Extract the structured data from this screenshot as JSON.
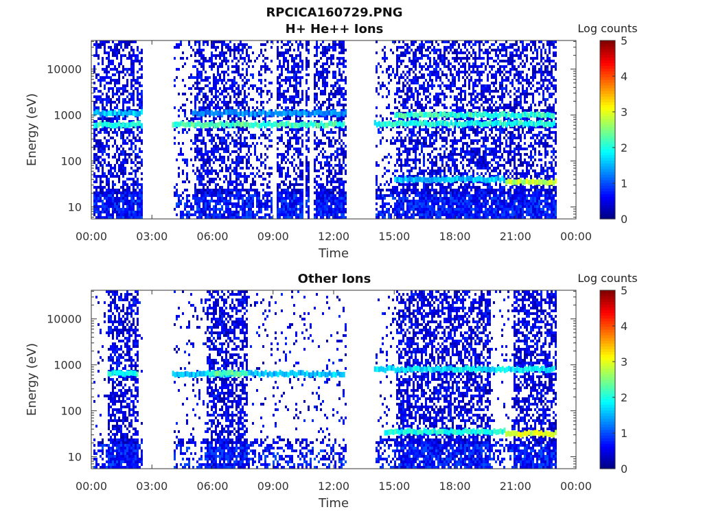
{
  "figure_title": "RPCICA160729.PNG",
  "colors": {
    "colormap": [
      "#00007f",
      "#0000ff",
      "#007fff",
      "#00ffff",
      "#7fff7f",
      "#ffff00",
      "#ff7f00",
      "#ff0000",
      "#7f0000"
    ],
    "axis": "#333333",
    "background": "#ffffff"
  },
  "chart_data": [
    {
      "type": "heatmap",
      "title": "H+ He++ Ions",
      "xlabel": "Time",
      "ylabel": "Energy (eV)",
      "x_ticks": [
        "00:00",
        "03:00",
        "06:00",
        "09:00",
        "12:00",
        "15:00",
        "18:00",
        "21:00",
        "00:00"
      ],
      "x_range_hours": [
        0,
        24
      ],
      "y_scale": "log",
      "y_range_eV": [
        5.5,
        42000
      ],
      "y_ticks": [
        "10",
        "100",
        "1000",
        "10000"
      ],
      "colorbar": {
        "label": "Log counts",
        "range": [
          0,
          5
        ],
        "ticks": [
          "0",
          "1",
          "2",
          "3",
          "4",
          "5"
        ]
      },
      "data_gaps_hours": [
        [
          2.45,
          4.0
        ],
        [
          8.95,
          9.15
        ],
        [
          10.45,
          10.6
        ],
        [
          10.8,
          10.95
        ],
        [
          12.55,
          14.0
        ],
        [
          22.95,
          24.0
        ]
      ],
      "coverage_hours": [
        [
          0.1,
          2.45
        ],
        [
          4.0,
          8.95
        ],
        [
          9.15,
          10.45
        ],
        [
          10.6,
          10.8
        ],
        [
          10.95,
          12.55
        ],
        [
          14.0,
          22.95
        ]
      ],
      "bands": [
        {
          "t0": 0.1,
          "t1": 2.45,
          "eV": 620,
          "level": 2.0
        },
        {
          "t0": 0.1,
          "t1": 2.45,
          "eV": 1100,
          "level": 1.6
        },
        {
          "t0": 4.0,
          "t1": 12.55,
          "eV": 620,
          "level": 2.2
        },
        {
          "t0": 5.0,
          "t1": 12.55,
          "eV": 1100,
          "level": 1.3
        },
        {
          "t0": 14.0,
          "t1": 22.95,
          "eV": 650,
          "level": 2.0
        },
        {
          "t0": 15.0,
          "t1": 22.95,
          "eV": 1000,
          "level": 2.1
        },
        {
          "t0": 15.0,
          "t1": 20.5,
          "eV": 40,
          "level": 1.6
        },
        {
          "t0": 20.5,
          "t1": 22.95,
          "eV": 35,
          "level": 2.8
        }
      ]
    },
    {
      "type": "heatmap",
      "title": "Other Ions",
      "xlabel": "Time",
      "ylabel": "Energy (eV)",
      "x_ticks": [
        "00:00",
        "03:00",
        "06:00",
        "09:00",
        "12:00",
        "15:00",
        "18:00",
        "21:00",
        "00:00"
      ],
      "x_range_hours": [
        0,
        24
      ],
      "y_scale": "log",
      "y_range_eV": [
        5.5,
        42000
      ],
      "y_ticks": [
        "10",
        "100",
        "1000",
        "10000"
      ],
      "colorbar": {
        "label": "Log counts",
        "range": [
          0,
          5
        ],
        "ticks": [
          "0",
          "1",
          "2",
          "3",
          "4",
          "5"
        ]
      },
      "data_gaps_hours": [
        [
          2.45,
          4.0
        ],
        [
          12.55,
          14.0
        ],
        [
          22.95,
          24.0
        ]
      ],
      "coverage_hours": [
        [
          0.1,
          2.45
        ],
        [
          4.0,
          12.55
        ],
        [
          14.0,
          22.95
        ]
      ],
      "bands": [
        {
          "t0": 0.8,
          "t1": 2.3,
          "eV": 650,
          "level": 2.0
        },
        {
          "t0": 4.0,
          "t1": 12.55,
          "eV": 640,
          "level": 1.6
        },
        {
          "t0": 5.8,
          "t1": 7.7,
          "eV": 650,
          "level": 2.3
        },
        {
          "t0": 14.0,
          "t1": 22.95,
          "eV": 800,
          "level": 1.8
        },
        {
          "t0": 14.5,
          "t1": 20.5,
          "eV": 35,
          "level": 2.0
        },
        {
          "t0": 20.5,
          "t1": 22.95,
          "eV": 32,
          "level": 2.9
        }
      ]
    }
  ]
}
